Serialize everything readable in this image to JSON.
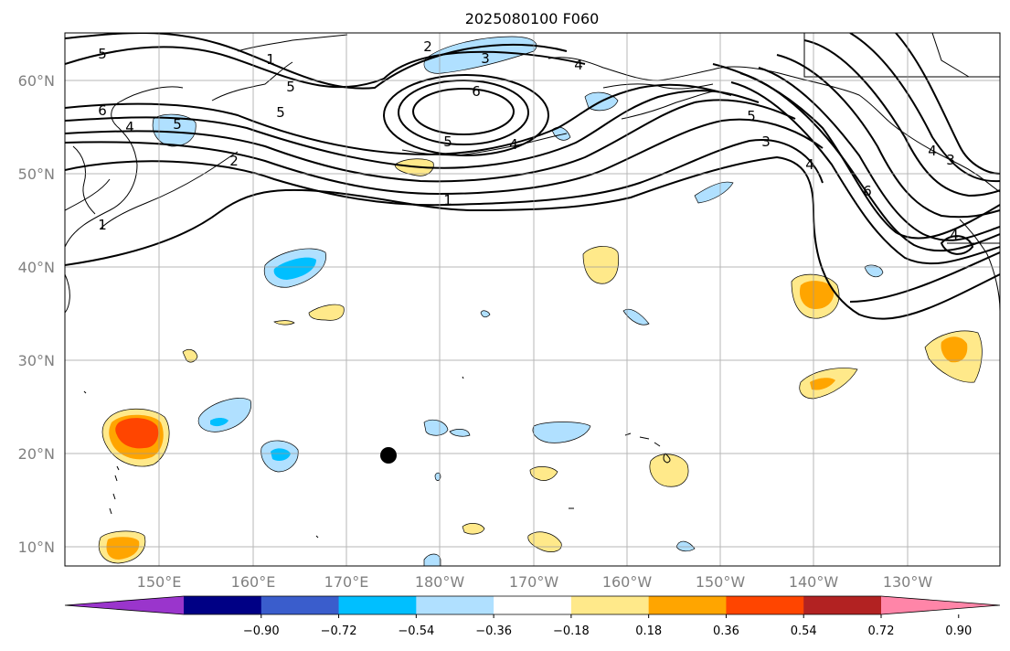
{
  "title": "2025080100 F060",
  "lat_labels": [
    "60°N",
    "50°N",
    "40°N",
    "30°N",
    "20°N",
    "10°N"
  ],
  "lon_labels": [
    "150°E",
    "160°E",
    "170°E",
    "180°W",
    "170°W",
    "160°W",
    "150°W",
    "140°W",
    "130°W"
  ],
  "colorbar": {
    "colors": [
      "#9a35cc",
      "#000085",
      "#3a5dcc",
      "#00bfff",
      "#b0e0ff",
      "#ffffff",
      "#ffe98a",
      "#ffa500",
      "#ff4500",
      "#b22222",
      "#ff85a8"
    ],
    "tick_labels": [
      "−0.90",
      "−0.72",
      "−0.54",
      "−0.36",
      "−0.18",
      "0.18",
      "0.36",
      "0.54",
      "0.72",
      "0.90"
    ]
  },
  "contour_labels": [
    "5",
    "2",
    "1",
    "5",
    "5",
    "6",
    "4",
    "5",
    "2",
    "1",
    "3",
    "6",
    "5",
    "4",
    "1",
    "4",
    "5",
    "3",
    "4",
    "6",
    "4",
    "3",
    "4"
  ],
  "marker": "black-dot"
}
